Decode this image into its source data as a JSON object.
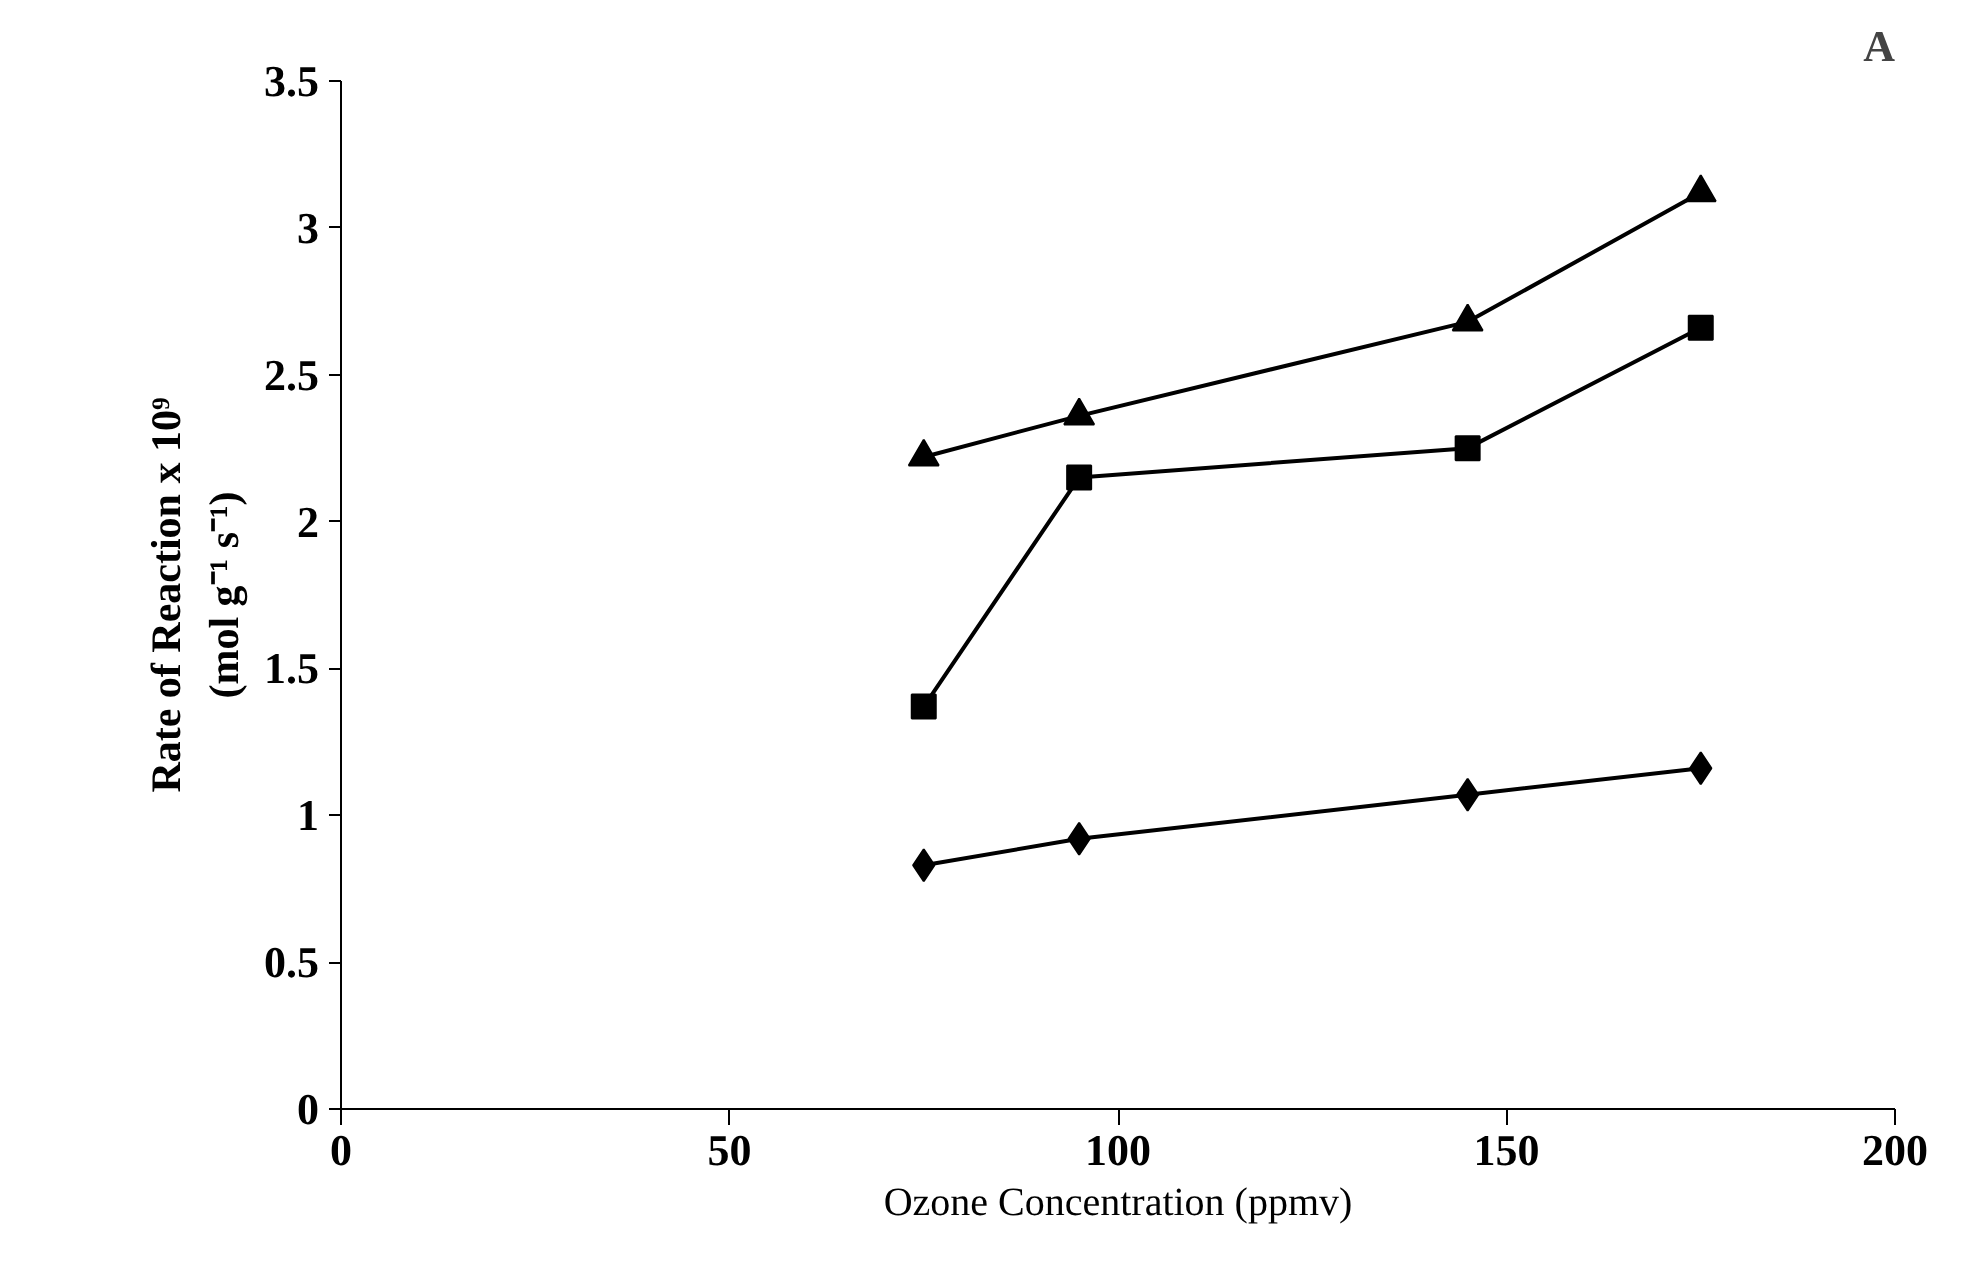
{
  "chart_data": {
    "type": "line",
    "xlabel": "Ozone Concentration (ppmv)",
    "ylabel": "Rate of Reaction x 10⁹\n(mol g⁻¹ s⁻¹)",
    "annotations": [
      "A"
    ],
    "x": [
      75,
      95,
      145,
      175
    ],
    "series": [
      {
        "color": "#000000",
        "marker": "triangle",
        "values": [
          2.22,
          2.36,
          2.68,
          3.12
        ]
      },
      {
        "color": "#000000",
        "marker": "square",
        "values": [
          1.37,
          2.15,
          2.25,
          2.66
        ]
      },
      {
        "color": "#000000",
        "marker": "diamond",
        "values": [
          0.83,
          0.92,
          1.07,
          1.16
        ]
      }
    ],
    "xlim": [
      0,
      200
    ],
    "xticks": [
      0,
      50,
      100,
      150,
      200
    ],
    "ylim": [
      0,
      3.5
    ],
    "yticks": [
      0,
      0.5,
      1,
      1.5,
      2,
      2.5,
      3,
      3.5
    ],
    "grid": false,
    "line_style": "solid"
  }
}
